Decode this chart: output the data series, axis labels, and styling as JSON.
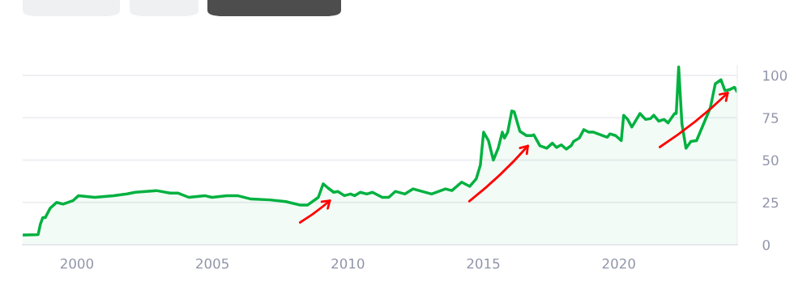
{
  "chart_data": {
    "type": "area",
    "x": [
      1998.0,
      1998.57,
      1998.65,
      1998.74,
      1998.83,
      1999.01,
      1999.25,
      1999.49,
      1999.85,
      2000.06,
      2000.66,
      2001.35,
      2001.85,
      2002.15,
      2002.93,
      2003.44,
      2003.74,
      2004.13,
      2004.72,
      2004.99,
      2005.53,
      2005.92,
      2006.43,
      2007.12,
      2007.71,
      2008.22,
      2008.52,
      2008.91,
      2009.09,
      2009.27,
      2009.48,
      2009.63,
      2009.87,
      2010.1,
      2010.25,
      2010.46,
      2010.7,
      2010.91,
      2011.27,
      2011.51,
      2011.75,
      2012.11,
      2012.41,
      2013.09,
      2013.6,
      2013.84,
      2014.2,
      2014.5,
      2014.74,
      2014.89,
      2015.01,
      2015.19,
      2015.37,
      2015.55,
      2015.7,
      2015.78,
      2015.9,
      2016.05,
      2016.14,
      2016.35,
      2016.59,
      2016.8,
      2016.86,
      2017.09,
      2017.34,
      2017.55,
      2017.7,
      2017.88,
      2018.06,
      2018.24,
      2018.33,
      2018.54,
      2018.71,
      2018.89,
      2019.07,
      2019.49,
      2019.58,
      2019.67,
      2019.88,
      2020.09,
      2020.18,
      2020.33,
      2020.48,
      2020.78,
      2020.99,
      2021.17,
      2021.29,
      2021.47,
      2021.67,
      2021.82,
      2022.06,
      2022.12,
      2022.21,
      2022.33,
      2022.48,
      2022.66,
      2022.87,
      2023.08,
      2023.38,
      2023.56,
      2023.77,
      2023.92,
      2024.07,
      2024.27,
      2024.36
    ],
    "series": [
      {
        "color": "#00b140",
        "values": [
          5.7,
          6,
          12,
          16,
          16,
          21.5,
          25,
          24,
          26,
          29,
          28,
          29,
          30,
          31,
          32,
          30.5,
          30.5,
          28,
          29,
          28,
          29,
          29,
          27,
          26.5,
          25.5,
          23.5,
          23.5,
          28,
          36,
          33.5,
          31,
          31.5,
          29,
          30,
          29,
          31,
          30,
          31,
          28,
          28,
          31.5,
          30,
          33,
          30,
          33,
          32,
          37,
          34.5,
          39,
          47,
          66.5,
          61.5,
          50,
          57,
          66.5,
          63,
          66.5,
          79,
          78.5,
          67,
          64.5,
          64.5,
          65,
          58.5,
          57,
          60,
          57.5,
          59,
          56.5,
          58.5,
          61,
          63,
          68,
          66.5,
          66.5,
          64,
          63.5,
          65.5,
          64.5,
          61.5,
          76.5,
          74,
          69.5,
          77.5,
          74,
          74.5,
          76.5,
          73,
          74,
          72,
          77.5,
          77.5,
          105,
          71.5,
          57,
          61,
          61.5,
          69.5,
          81,
          95,
          97.5,
          91,
          91.5,
          93,
          90.5
        ]
      }
    ],
    "xlim": [
      1998.0,
      2024.37
    ],
    "ylim": [
      0,
      106
    ],
    "xticks": [
      2000,
      2005,
      2010,
      2015,
      2020
    ],
    "yticks": [
      0,
      25,
      50,
      75,
      100
    ],
    "grid": "y"
  }
}
